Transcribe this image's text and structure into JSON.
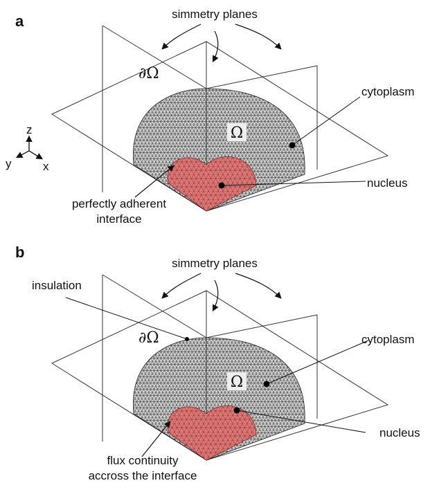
{
  "panels": [
    {
      "label": "a",
      "planes": "simmetry planes",
      "boundary": "∂Ω",
      "domain": "Ω",
      "cytoplasm": "cytoplasm",
      "nucleus": "nucleus",
      "interface": [
        "perfectly adherent",
        "interface"
      ],
      "axes": {
        "z": "z",
        "y": "y",
        "x": "x"
      }
    },
    {
      "label": "b",
      "planes": "simmetry planes",
      "boundary": "∂Ω",
      "domain": "Ω",
      "cytoplasm": "cytoplasm",
      "nucleus": "nucleus",
      "insulation": "insulation",
      "interface": [
        "flux continuity",
        "accross the interface"
      ]
    }
  ]
}
